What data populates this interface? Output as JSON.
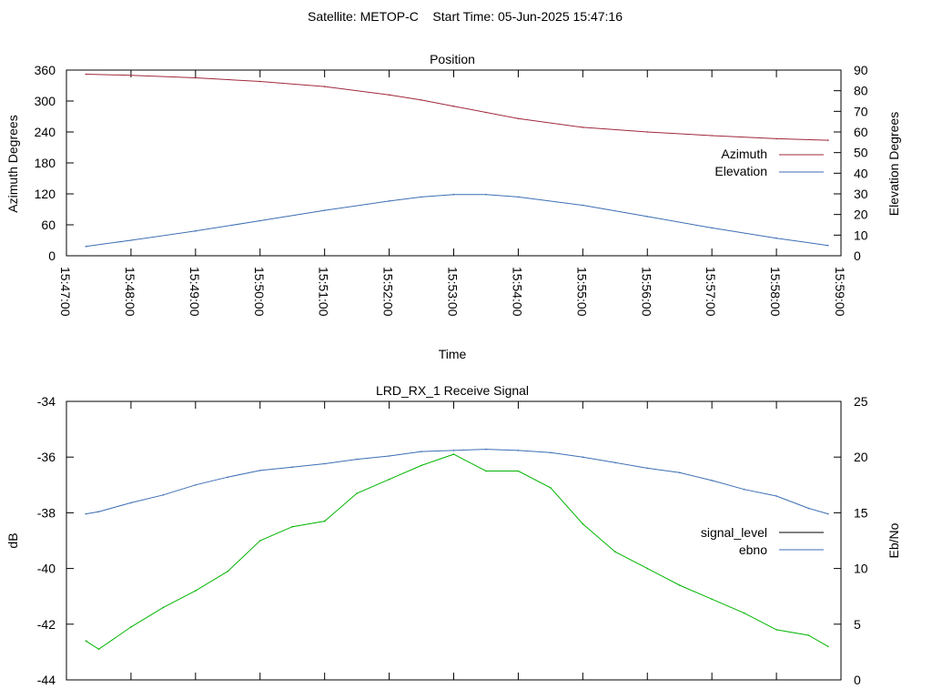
{
  "header": {
    "title": "Satellite: METOP-C    Start Time: 05-Jun-2025 15:47:16"
  },
  "chart_data": [
    {
      "type": "line",
      "title": "Position",
      "xlabel": "Time",
      "ylabel_left": "Azimuth Degrees",
      "ylabel_right": "Elevation Degrees",
      "ylim_left": [
        0,
        360
      ],
      "ylim_right": [
        0,
        90
      ],
      "yticks_left": [
        "0",
        "60",
        "120",
        "180",
        "240",
        "300",
        "360"
      ],
      "yticks_right": [
        "0",
        "10",
        "20",
        "30",
        "40",
        "50",
        "60",
        "70",
        "80",
        "90"
      ],
      "xlim_minutes": [
        0,
        12
      ],
      "xticks": [
        "15:47:00",
        "15:48:00",
        "15:49:00",
        "15:50:00",
        "15:51:00",
        "15:52:00",
        "15:53:00",
        "15:54:00",
        "15:55:00",
        "15:56:00",
        "15:57:00",
        "15:58:00",
        "15:59:00"
      ],
      "legend_position": "right",
      "series": [
        {
          "name": "Azimuth",
          "axis": "left",
          "color": "#a0283c",
          "x_minutes": [
            0.3,
            1.0,
            2.0,
            3.0,
            4.0,
            5.0,
            5.5,
            6.0,
            6.5,
            7.0,
            8.0,
            9.0,
            10.0,
            11.0,
            11.8
          ],
          "values": [
            352,
            350,
            345,
            338,
            328,
            312,
            302,
            290,
            278,
            266,
            249,
            240,
            233,
            227,
            224
          ]
        },
        {
          "name": "Elevation",
          "axis": "right",
          "color": "#3c6eb4",
          "x_minutes": [
            0.3,
            1.0,
            2.0,
            3.0,
            4.0,
            5.0,
            5.5,
            6.0,
            6.5,
            7.0,
            8.0,
            9.0,
            10.0,
            11.0,
            11.8
          ],
          "values": [
            4.5,
            7.5,
            12,
            17,
            22,
            26.5,
            28.5,
            29.7,
            29.7,
            28.5,
            24.5,
            19,
            13.5,
            8.5,
            5
          ]
        }
      ]
    },
    {
      "type": "line",
      "title": "LRD_RX_1 Receive Signal",
      "ylabel_left": "dB",
      "ylabel_right": "Eb/No",
      "ylim_left": [
        -44,
        -34
      ],
      "ylim_right": [
        0,
        25
      ],
      "yticks_left": [
        "-44",
        "-42",
        "-40",
        "-38",
        "-36",
        "-34"
      ],
      "yticks_right": [
        "0",
        "5",
        "10",
        "15",
        "20",
        "25"
      ],
      "xlim_minutes": [
        0,
        12
      ],
      "legend_position": "right",
      "series": [
        {
          "name": "signal_level",
          "axis": "left",
          "color": "#00b400",
          "x_minutes": [
            0.3,
            0.5,
            1.0,
            1.5,
            2.0,
            2.5,
            3.0,
            3.5,
            4.0,
            4.5,
            5.0,
            5.5,
            6.0,
            6.5,
            7.0,
            7.5,
            8.0,
            8.5,
            9.0,
            9.5,
            10.0,
            10.5,
            11.0,
            11.5,
            11.8
          ],
          "values": [
            -42.6,
            -42.9,
            -42.1,
            -41.4,
            -40.8,
            -40.1,
            -39.0,
            -38.5,
            -38.3,
            -37.3,
            -36.8,
            -36.3,
            -35.9,
            -36.5,
            -36.5,
            -37.1,
            -38.4,
            -39.4,
            -40.0,
            -40.6,
            -41.1,
            -41.6,
            -42.2,
            -42.4,
            -42.8
          ]
        },
        {
          "name": "ebno",
          "axis": "right",
          "color": "#3c6eb4",
          "x_minutes": [
            0.3,
            0.5,
            1.0,
            1.5,
            2.0,
            2.5,
            3.0,
            3.5,
            4.0,
            4.5,
            5.0,
            5.5,
            6.0,
            6.5,
            7.0,
            7.5,
            8.0,
            8.5,
            9.0,
            9.5,
            10.0,
            10.5,
            11.0,
            11.5,
            11.8
          ],
          "values": [
            14.9,
            15.1,
            15.9,
            16.6,
            17.5,
            18.2,
            18.8,
            19.1,
            19.4,
            19.8,
            20.1,
            20.5,
            20.6,
            20.7,
            20.6,
            20.4,
            20.0,
            19.5,
            19.0,
            18.6,
            17.9,
            17.1,
            16.5,
            15.4,
            14.9
          ]
        }
      ]
    }
  ]
}
